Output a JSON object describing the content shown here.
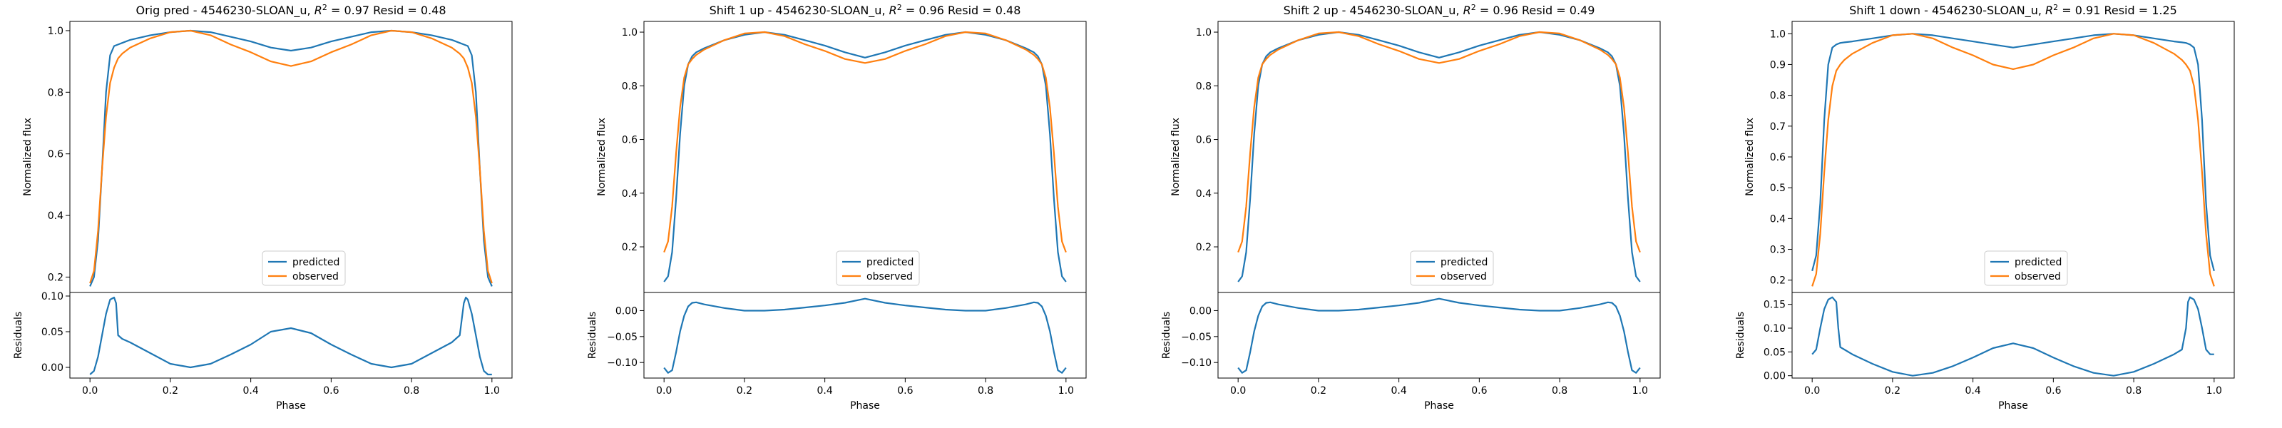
{
  "figure": {
    "xlabel": "Phase",
    "ylabel_top": "Normalized flux",
    "ylabel_bottom": "Residuals"
  },
  "legend": {
    "predicted": "predicted",
    "observed": "observed",
    "placement": "lower center"
  },
  "colors": {
    "predicted": "#1f77b4",
    "observed": "#ff7f0e"
  },
  "chart_data": [
    {
      "type": "line",
      "title_prefix": "Orig pred - 4546230-SLOAN_u, ",
      "r2_symbol": "R",
      "title_suffix": " = 0.97 Resid = 0.48",
      "flux_ylim": [
        0.15,
        1.03
      ],
      "flux_yticks": [
        0.2,
        0.4,
        0.6,
        0.8,
        1.0
      ],
      "resid_ylim": [
        -0.015,
        0.105
      ],
      "resid_yticks": [
        0.0,
        0.05,
        0.1
      ],
      "xlim": [
        -0.05,
        1.05
      ],
      "xticks": [
        0.0,
        0.2,
        0.4,
        0.6,
        0.8,
        1.0
      ],
      "series": [
        {
          "name": "predicted",
          "x": [
            0.0,
            0.01,
            0.02,
            0.03,
            0.04,
            0.05,
            0.06,
            0.07,
            0.08,
            0.1,
            0.15,
            0.2,
            0.25,
            0.3,
            0.35,
            0.4,
            0.45,
            0.5,
            0.55,
            0.6,
            0.65,
            0.7,
            0.75,
            0.8,
            0.85,
            0.9,
            0.92,
            0.93,
            0.94,
            0.95,
            0.96,
            0.97,
            0.98,
            0.99,
            1.0
          ],
          "y": [
            0.17,
            0.2,
            0.32,
            0.55,
            0.8,
            0.92,
            0.95,
            0.955,
            0.96,
            0.97,
            0.985,
            0.995,
            1.0,
            0.995,
            0.98,
            0.965,
            0.945,
            0.935,
            0.945,
            0.965,
            0.98,
            0.995,
            1.0,
            0.995,
            0.985,
            0.97,
            0.96,
            0.955,
            0.95,
            0.92,
            0.8,
            0.55,
            0.32,
            0.2,
            0.17
          ]
        },
        {
          "name": "observed",
          "x": [
            0.0,
            0.01,
            0.02,
            0.03,
            0.04,
            0.05,
            0.06,
            0.07,
            0.08,
            0.1,
            0.15,
            0.2,
            0.25,
            0.3,
            0.35,
            0.4,
            0.45,
            0.5,
            0.55,
            0.6,
            0.65,
            0.7,
            0.75,
            0.8,
            0.85,
            0.9,
            0.92,
            0.93,
            0.94,
            0.95,
            0.96,
            0.97,
            0.98,
            0.99,
            1.0
          ],
          "y": [
            0.18,
            0.22,
            0.35,
            0.55,
            0.72,
            0.83,
            0.88,
            0.91,
            0.925,
            0.945,
            0.975,
            0.995,
            1.0,
            0.985,
            0.955,
            0.93,
            0.9,
            0.885,
            0.9,
            0.93,
            0.955,
            0.985,
            1.0,
            0.995,
            0.975,
            0.945,
            0.925,
            0.91,
            0.88,
            0.83,
            0.72,
            0.55,
            0.35,
            0.22,
            0.18
          ]
        }
      ],
      "residuals": {
        "x": [
          0.0,
          0.01,
          0.02,
          0.03,
          0.04,
          0.05,
          0.06,
          0.065,
          0.07,
          0.08,
          0.1,
          0.15,
          0.2,
          0.25,
          0.3,
          0.35,
          0.4,
          0.45,
          0.5,
          0.55,
          0.6,
          0.65,
          0.7,
          0.75,
          0.8,
          0.85,
          0.9,
          0.92,
          0.93,
          0.935,
          0.94,
          0.95,
          0.96,
          0.97,
          0.98,
          0.99,
          1.0
        ],
        "y": [
          -0.01,
          -0.005,
          0.015,
          0.045,
          0.075,
          0.095,
          0.098,
          0.09,
          0.045,
          0.04,
          0.035,
          0.02,
          0.005,
          0.0,
          0.005,
          0.018,
          0.032,
          0.05,
          0.055,
          0.048,
          0.032,
          0.018,
          0.005,
          0.0,
          0.005,
          0.02,
          0.035,
          0.045,
          0.09,
          0.098,
          0.095,
          0.075,
          0.045,
          0.015,
          -0.005,
          -0.01,
          -0.01
        ]
      }
    },
    {
      "type": "line",
      "title_prefix": "Shift 1 up - 4546230-SLOAN_u, ",
      "r2_symbol": "R",
      "title_suffix": " = 0.96 Resid = 0.48",
      "flux_ylim": [
        0.03,
        1.04
      ],
      "flux_yticks": [
        0.2,
        0.4,
        0.6,
        0.8,
        1.0
      ],
      "resid_ylim": [
        -0.13,
        0.035
      ],
      "resid_yticks": [
        -0.1,
        -0.05,
        0.0
      ],
      "xlim": [
        -0.05,
        1.05
      ],
      "xticks": [
        0.0,
        0.2,
        0.4,
        0.6,
        0.8,
        1.0
      ],
      "series": [
        {
          "name": "predicted",
          "x": [
            0.0,
            0.01,
            0.02,
            0.03,
            0.04,
            0.05,
            0.06,
            0.07,
            0.08,
            0.1,
            0.15,
            0.2,
            0.25,
            0.3,
            0.35,
            0.4,
            0.45,
            0.5,
            0.55,
            0.6,
            0.65,
            0.7,
            0.75,
            0.8,
            0.85,
            0.9,
            0.92,
            0.93,
            0.94,
            0.95,
            0.96,
            0.97,
            0.98,
            0.99,
            1.0
          ],
          "y": [
            0.07,
            0.09,
            0.18,
            0.38,
            0.62,
            0.8,
            0.88,
            0.91,
            0.925,
            0.94,
            0.97,
            0.99,
            1.0,
            0.99,
            0.97,
            0.95,
            0.925,
            0.905,
            0.925,
            0.95,
            0.97,
            0.99,
            1.0,
            0.99,
            0.97,
            0.94,
            0.925,
            0.91,
            0.88,
            0.8,
            0.62,
            0.38,
            0.18,
            0.09,
            0.07
          ]
        },
        {
          "name": "observed",
          "x": [
            0.0,
            0.01,
            0.02,
            0.03,
            0.04,
            0.05,
            0.06,
            0.07,
            0.08,
            0.1,
            0.15,
            0.2,
            0.25,
            0.3,
            0.35,
            0.4,
            0.45,
            0.5,
            0.55,
            0.6,
            0.65,
            0.7,
            0.75,
            0.8,
            0.85,
            0.9,
            0.92,
            0.93,
            0.94,
            0.95,
            0.96,
            0.97,
            0.98,
            0.99,
            1.0
          ],
          "y": [
            0.18,
            0.22,
            0.35,
            0.55,
            0.72,
            0.83,
            0.88,
            0.9,
            0.915,
            0.935,
            0.97,
            0.995,
            1.0,
            0.985,
            0.955,
            0.93,
            0.9,
            0.885,
            0.9,
            0.93,
            0.955,
            0.985,
            1.0,
            0.995,
            0.97,
            0.935,
            0.915,
            0.9,
            0.88,
            0.83,
            0.72,
            0.55,
            0.35,
            0.22,
            0.18
          ]
        }
      ],
      "residuals": {
        "x": [
          0.0,
          0.01,
          0.02,
          0.03,
          0.04,
          0.05,
          0.06,
          0.07,
          0.08,
          0.1,
          0.15,
          0.2,
          0.25,
          0.3,
          0.35,
          0.4,
          0.45,
          0.5,
          0.55,
          0.6,
          0.65,
          0.7,
          0.75,
          0.8,
          0.85,
          0.9,
          0.92,
          0.93,
          0.94,
          0.95,
          0.96,
          0.97,
          0.98,
          0.99,
          1.0
        ],
        "y": [
          -0.11,
          -0.12,
          -0.115,
          -0.08,
          -0.04,
          -0.01,
          0.008,
          0.015,
          0.016,
          0.012,
          0.005,
          0.0,
          0.0,
          0.002,
          0.006,
          0.01,
          0.015,
          0.023,
          0.015,
          0.01,
          0.006,
          0.002,
          0.0,
          0.0,
          0.005,
          0.012,
          0.016,
          0.015,
          0.008,
          -0.01,
          -0.04,
          -0.08,
          -0.115,
          -0.12,
          -0.11
        ]
      }
    },
    {
      "type": "line",
      "title_prefix": "Shift 2 up - 4546230-SLOAN_u, ",
      "r2_symbol": "R",
      "title_suffix": " = 0.96 Resid = 0.49",
      "flux_ylim": [
        0.03,
        1.04
      ],
      "flux_yticks": [
        0.2,
        0.4,
        0.6,
        0.8,
        1.0
      ],
      "resid_ylim": [
        -0.13,
        0.035
      ],
      "resid_yticks": [
        -0.1,
        -0.05,
        0.0
      ],
      "xlim": [
        -0.05,
        1.05
      ],
      "xticks": [
        0.0,
        0.2,
        0.4,
        0.6,
        0.8,
        1.0
      ],
      "series": [
        {
          "name": "predicted",
          "x": [
            0.0,
            0.01,
            0.02,
            0.03,
            0.04,
            0.05,
            0.06,
            0.07,
            0.08,
            0.1,
            0.15,
            0.2,
            0.25,
            0.3,
            0.35,
            0.4,
            0.45,
            0.5,
            0.55,
            0.6,
            0.65,
            0.7,
            0.75,
            0.8,
            0.85,
            0.9,
            0.92,
            0.93,
            0.94,
            0.95,
            0.96,
            0.97,
            0.98,
            0.99,
            1.0
          ],
          "y": [
            0.07,
            0.09,
            0.18,
            0.38,
            0.62,
            0.8,
            0.88,
            0.91,
            0.925,
            0.94,
            0.97,
            0.99,
            1.0,
            0.99,
            0.97,
            0.95,
            0.925,
            0.905,
            0.925,
            0.95,
            0.97,
            0.99,
            1.0,
            0.99,
            0.97,
            0.94,
            0.925,
            0.91,
            0.88,
            0.8,
            0.62,
            0.38,
            0.18,
            0.09,
            0.07
          ]
        },
        {
          "name": "observed",
          "x": [
            0.0,
            0.01,
            0.02,
            0.03,
            0.04,
            0.05,
            0.06,
            0.07,
            0.08,
            0.1,
            0.15,
            0.2,
            0.25,
            0.3,
            0.35,
            0.4,
            0.45,
            0.5,
            0.55,
            0.6,
            0.65,
            0.7,
            0.75,
            0.8,
            0.85,
            0.9,
            0.92,
            0.93,
            0.94,
            0.95,
            0.96,
            0.97,
            0.98,
            0.99,
            1.0
          ],
          "y": [
            0.18,
            0.22,
            0.35,
            0.55,
            0.72,
            0.83,
            0.88,
            0.9,
            0.915,
            0.935,
            0.97,
            0.995,
            1.0,
            0.985,
            0.955,
            0.93,
            0.9,
            0.885,
            0.9,
            0.93,
            0.955,
            0.985,
            1.0,
            0.995,
            0.97,
            0.935,
            0.915,
            0.9,
            0.88,
            0.83,
            0.72,
            0.55,
            0.35,
            0.22,
            0.18
          ]
        }
      ],
      "residuals": {
        "x": [
          0.0,
          0.01,
          0.02,
          0.03,
          0.04,
          0.05,
          0.06,
          0.07,
          0.08,
          0.1,
          0.15,
          0.2,
          0.25,
          0.3,
          0.35,
          0.4,
          0.45,
          0.5,
          0.55,
          0.6,
          0.65,
          0.7,
          0.75,
          0.8,
          0.85,
          0.9,
          0.92,
          0.93,
          0.94,
          0.95,
          0.96,
          0.97,
          0.98,
          0.99,
          1.0
        ],
        "y": [
          -0.11,
          -0.12,
          -0.115,
          -0.08,
          -0.04,
          -0.01,
          0.008,
          0.015,
          0.016,
          0.012,
          0.005,
          0.0,
          0.0,
          0.002,
          0.006,
          0.01,
          0.015,
          0.023,
          0.015,
          0.01,
          0.006,
          0.002,
          0.0,
          0.0,
          0.005,
          0.012,
          0.016,
          0.015,
          0.008,
          -0.01,
          -0.04,
          -0.08,
          -0.115,
          -0.12,
          -0.11
        ]
      }
    },
    {
      "type": "line",
      "title_prefix": "Shift 1 down - 4546230-SLOAN_u, ",
      "r2_symbol": "R",
      "title_suffix": " = 0.91 Resid = 1.25",
      "flux_ylim": [
        0.16,
        1.04
      ],
      "flux_yticks": [
        0.2,
        0.3,
        0.4,
        0.5,
        0.6,
        0.7,
        0.8,
        0.9,
        1.0
      ],
      "resid_ylim": [
        -0.005,
        0.175
      ],
      "resid_yticks": [
        0.0,
        0.05,
        0.1,
        0.15
      ],
      "xlim": [
        -0.05,
        1.05
      ],
      "xticks": [
        0.0,
        0.2,
        0.4,
        0.6,
        0.8,
        1.0
      ],
      "series": [
        {
          "name": "predicted",
          "x": [
            0.0,
            0.01,
            0.02,
            0.03,
            0.04,
            0.05,
            0.06,
            0.07,
            0.08,
            0.1,
            0.15,
            0.2,
            0.25,
            0.3,
            0.35,
            0.4,
            0.45,
            0.5,
            0.55,
            0.6,
            0.65,
            0.7,
            0.75,
            0.8,
            0.85,
            0.9,
            0.92,
            0.93,
            0.94,
            0.95,
            0.96,
            0.97,
            0.98,
            0.99,
            1.0
          ],
          "y": [
            0.23,
            0.28,
            0.45,
            0.72,
            0.9,
            0.955,
            0.965,
            0.97,
            0.972,
            0.975,
            0.985,
            0.995,
            1.0,
            0.995,
            0.985,
            0.975,
            0.965,
            0.955,
            0.965,
            0.975,
            0.985,
            0.995,
            1.0,
            0.995,
            0.985,
            0.975,
            0.972,
            0.97,
            0.965,
            0.955,
            0.9,
            0.72,
            0.45,
            0.28,
            0.23
          ]
        },
        {
          "name": "observed",
          "x": [
            0.0,
            0.01,
            0.02,
            0.03,
            0.04,
            0.05,
            0.06,
            0.07,
            0.08,
            0.1,
            0.15,
            0.2,
            0.25,
            0.3,
            0.35,
            0.4,
            0.45,
            0.5,
            0.55,
            0.6,
            0.65,
            0.7,
            0.75,
            0.8,
            0.85,
            0.9,
            0.92,
            0.93,
            0.94,
            0.95,
            0.96,
            0.97,
            0.98,
            0.99,
            1.0
          ],
          "y": [
            0.18,
            0.22,
            0.35,
            0.55,
            0.72,
            0.83,
            0.88,
            0.9,
            0.915,
            0.935,
            0.97,
            0.995,
            1.0,
            0.985,
            0.955,
            0.93,
            0.9,
            0.885,
            0.9,
            0.93,
            0.955,
            0.985,
            1.0,
            0.995,
            0.97,
            0.935,
            0.915,
            0.9,
            0.88,
            0.83,
            0.72,
            0.55,
            0.35,
            0.22,
            0.18
          ]
        }
      ],
      "residuals": {
        "x": [
          0.0,
          0.01,
          0.02,
          0.03,
          0.04,
          0.05,
          0.06,
          0.065,
          0.07,
          0.08,
          0.1,
          0.15,
          0.2,
          0.25,
          0.3,
          0.35,
          0.4,
          0.45,
          0.5,
          0.55,
          0.6,
          0.65,
          0.7,
          0.75,
          0.8,
          0.85,
          0.9,
          0.92,
          0.93,
          0.935,
          0.94,
          0.95,
          0.96,
          0.97,
          0.98,
          0.99,
          1.0
        ],
        "y": [
          0.045,
          0.055,
          0.1,
          0.14,
          0.16,
          0.165,
          0.155,
          0.1,
          0.06,
          0.055,
          0.045,
          0.025,
          0.008,
          0.0,
          0.006,
          0.02,
          0.038,
          0.058,
          0.068,
          0.058,
          0.038,
          0.02,
          0.006,
          0.0,
          0.008,
          0.025,
          0.045,
          0.055,
          0.1,
          0.155,
          0.165,
          0.16,
          0.14,
          0.1,
          0.055,
          0.045,
          0.045
        ]
      }
    }
  ]
}
